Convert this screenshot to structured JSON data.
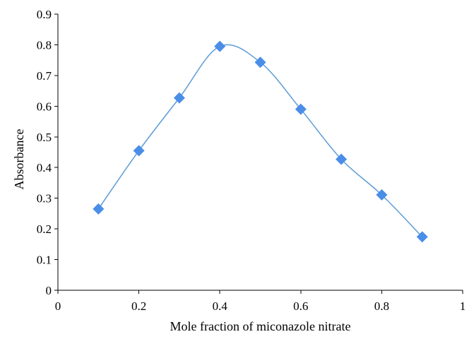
{
  "chart_data": {
    "type": "scatter",
    "title": "",
    "xlabel": "Mole fraction of miconazole nitrate",
    "ylabel": "Absorbance",
    "xlim": [
      0,
      1
    ],
    "ylim": [
      0,
      0.9
    ],
    "x_ticks": [
      0,
      0.2,
      0.4,
      0.6,
      0.8,
      1
    ],
    "x_tick_labels": [
      "0",
      "0.2",
      "0.4",
      "0.6",
      "0.8",
      "1"
    ],
    "y_ticks": [
      0,
      0.1,
      0.2,
      0.3,
      0.4,
      0.5,
      0.6,
      0.7,
      0.8,
      0.9
    ],
    "y_tick_labels": [
      "0",
      "0.1",
      "0.2",
      "0.3",
      "0.4",
      "0.5",
      "0.6",
      "0.7",
      "0.8",
      "0.9"
    ],
    "grid": false,
    "legend": "none",
    "smooth_line": true,
    "marker": "diamond",
    "colors": {
      "marker": "#4a8ee8",
      "line": "#5b9bd5"
    },
    "series": [
      {
        "x": [
          0.1,
          0.2,
          0.3,
          0.4,
          0.5,
          0.6,
          0.7,
          0.8,
          0.9
        ],
        "y": [
          0.265,
          0.455,
          0.627,
          0.795,
          0.743,
          0.59,
          0.427,
          0.311,
          0.174
        ]
      }
    ]
  }
}
